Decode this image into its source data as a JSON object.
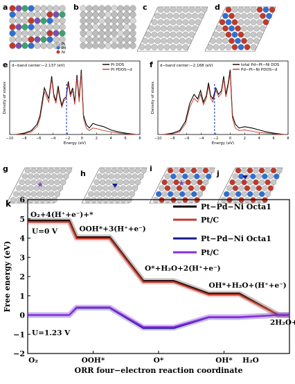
{
  "panel_labels": {
    "a": "a",
    "b": "b",
    "c": "c",
    "d": "d",
    "e": "e",
    "f": "f",
    "g": "g",
    "h": "h",
    "i": "i",
    "j": "j",
    "k": "k"
  },
  "legend_a": [
    "Pt",
    "Pd",
    "Ni"
  ],
  "colors": {
    "pt": "#c8c8c8",
    "pd": "#2f6fd6",
    "ni": "#c0392b",
    "adsorbate": "#7a4fb0",
    "black": "#000000",
    "red_curve": "#c0392b",
    "purple_curve": "#8a2be2",
    "navy_curve": "#1a1a8c",
    "dash": "#1a3fcf"
  },
  "chart_data": [
    {
      "type": "line",
      "panel": "e",
      "annotation": "d−band center:−2.137 (eV)",
      "xlabel": "Energy (eV)",
      "ylabel": "Density of states",
      "xlim": [
        -10,
        8
      ],
      "xticks": [
        -10,
        -8,
        -6,
        -4,
        -2,
        0,
        2,
        4,
        6,
        8
      ],
      "dband_center": -2.137,
      "series": [
        {
          "name": "Pt DOS",
          "color": "#000000",
          "x": [
            -9.2,
            -8,
            -7,
            -6.2,
            -5.8,
            -5.2,
            -4.6,
            -4.2,
            -3.9,
            -3.6,
            -3.3,
            -3.1,
            -2.8,
            -2.5,
            -2.2,
            -1.9,
            -1.6,
            -1.3,
            -1.0,
            -0.7,
            -0.4,
            -0.1,
            0.2,
            0.6,
            1,
            1.5,
            2,
            3,
            4,
            5,
            6,
            7.5
          ],
          "y": [
            0,
            0.02,
            0.06,
            0.16,
            0.3,
            0.72,
            0.55,
            0.9,
            0.62,
            0.52,
            0.75,
            0.6,
            0.45,
            0.55,
            0.58,
            0.82,
            0.62,
            0.72,
            0.5,
            0.92,
            0.55,
            1.0,
            0.3,
            0.15,
            0.1,
            0.17,
            0.15,
            0.12,
            0.07,
            0.04,
            0.02,
            0.0
          ]
        },
        {
          "name": "Pt PDOS−d",
          "color": "#c0392b",
          "x": [
            -9.2,
            -8,
            -7,
            -6.2,
            -5.8,
            -5.2,
            -4.6,
            -4.2,
            -3.9,
            -3.6,
            -3.3,
            -3.1,
            -2.8,
            -2.5,
            -2.2,
            -1.9,
            -1.6,
            -1.3,
            -1.0,
            -0.7,
            -0.4,
            -0.1,
            0.2,
            0.6,
            1,
            1.5,
            2,
            3,
            4,
            5,
            6,
            7.5
          ],
          "y": [
            0,
            0.01,
            0.04,
            0.12,
            0.25,
            0.66,
            0.5,
            0.86,
            0.58,
            0.48,
            0.7,
            0.56,
            0.42,
            0.52,
            0.55,
            0.78,
            0.58,
            0.68,
            0.46,
            0.88,
            0.5,
            0.95,
            0.25,
            0.1,
            0.06,
            0.1,
            0.09,
            0.06,
            0.04,
            0.02,
            0.01,
            0.0
          ]
        }
      ]
    },
    {
      "type": "line",
      "panel": "f",
      "annotation": "d−band center:−2.168 (eV)",
      "xlabel": "Energy (eV)",
      "ylabel": "Density of states",
      "xlim": [
        -10,
        8
      ],
      "xticks": [
        -10,
        -8,
        -6,
        -4,
        -2,
        0,
        2,
        4,
        6,
        8
      ],
      "dband_center": -2.168,
      "series": [
        {
          "name": "total Pd−Pt−Ni DOS",
          "color": "#000000",
          "x": [
            -9.2,
            -8,
            -7,
            -6.2,
            -5.6,
            -5.0,
            -4.5,
            -4.1,
            -3.7,
            -3.3,
            -3.0,
            -2.7,
            -2.4,
            -2.0,
            -1.6,
            -1.2,
            -0.9,
            -0.6,
            -0.3,
            0,
            0.3,
            0.7,
            1.2,
            2,
            3,
            4,
            5,
            6,
            7.5
          ],
          "y": [
            0,
            0.02,
            0.06,
            0.2,
            0.48,
            0.62,
            0.55,
            0.68,
            0.5,
            0.6,
            0.8,
            0.6,
            0.55,
            0.72,
            0.62,
            0.68,
            0.9,
            0.62,
            0.78,
            1.0,
            0.3,
            0.16,
            0.1,
            0.12,
            0.1,
            0.07,
            0.04,
            0.02,
            0.0
          ]
        },
        {
          "name": "Pd−Pt−Ni PDOS−d",
          "color": "#c0392b",
          "x": [
            -9.2,
            -8,
            -7,
            -6.2,
            -5.6,
            -5.0,
            -4.5,
            -4.1,
            -3.7,
            -3.3,
            -3.0,
            -2.7,
            -2.4,
            -2.0,
            -1.6,
            -1.2,
            -0.9,
            -0.6,
            -0.3,
            0,
            0.3,
            0.7,
            1.2,
            2,
            3,
            4,
            5,
            6,
            7.5
          ],
          "y": [
            0,
            0.01,
            0.04,
            0.16,
            0.42,
            0.56,
            0.5,
            0.62,
            0.46,
            0.56,
            0.75,
            0.56,
            0.5,
            0.68,
            0.58,
            0.64,
            0.86,
            0.58,
            0.74,
            0.95,
            0.25,
            0.1,
            0.06,
            0.07,
            0.05,
            0.03,
            0.02,
            0.01,
            0.0
          ]
        }
      ]
    },
    {
      "type": "line",
      "panel": "k",
      "xlabel": "ORR four−electron reaction coordinate",
      "ylabel": "Free energy (eV)",
      "ylim": [
        -2,
        6
      ],
      "yticks": [
        -2,
        -1,
        0,
        1,
        2,
        3,
        4,
        5,
        6
      ],
      "categories": [
        "O₂",
        "OOH*",
        "O*",
        "OH*",
        "H₂O"
      ],
      "series": [
        {
          "name": "Pt−Pd−Ni Octa1",
          "group": "U=0 V",
          "color": "#000000",
          "values": [
            4.92,
            4.05,
            1.78,
            1.12,
            0.0
          ]
        },
        {
          "name": "Pt/C",
          "group": "U=0 V",
          "color": "#c0392b",
          "values": [
            4.84,
            3.98,
            1.72,
            1.06,
            0.0
          ]
        },
        {
          "name": "Pt−Pd−Ni Octa1",
          "group": "U=1.23 V",
          "color": "#1a1a8c",
          "values": [
            0.0,
            0.37,
            -0.68,
            -0.12,
            0.0
          ]
        },
        {
          "name": "Pt/C",
          "group": "U=1.23 V",
          "color": "#8a2be2",
          "values": [
            0.0,
            0.4,
            -0.62,
            -0.1,
            0.0
          ]
        }
      ],
      "annotations": [
        "O₂+4(H⁺+e⁻)+*",
        "OOH*+3(H⁺+e⁻)",
        "O*+H₂O+2(H⁺+e⁻)",
        "OH*+H₂O+(H⁺+e⁻)",
        "2H₂O+*",
        "U=0 V",
        "U=1.23 V"
      ]
    }
  ]
}
